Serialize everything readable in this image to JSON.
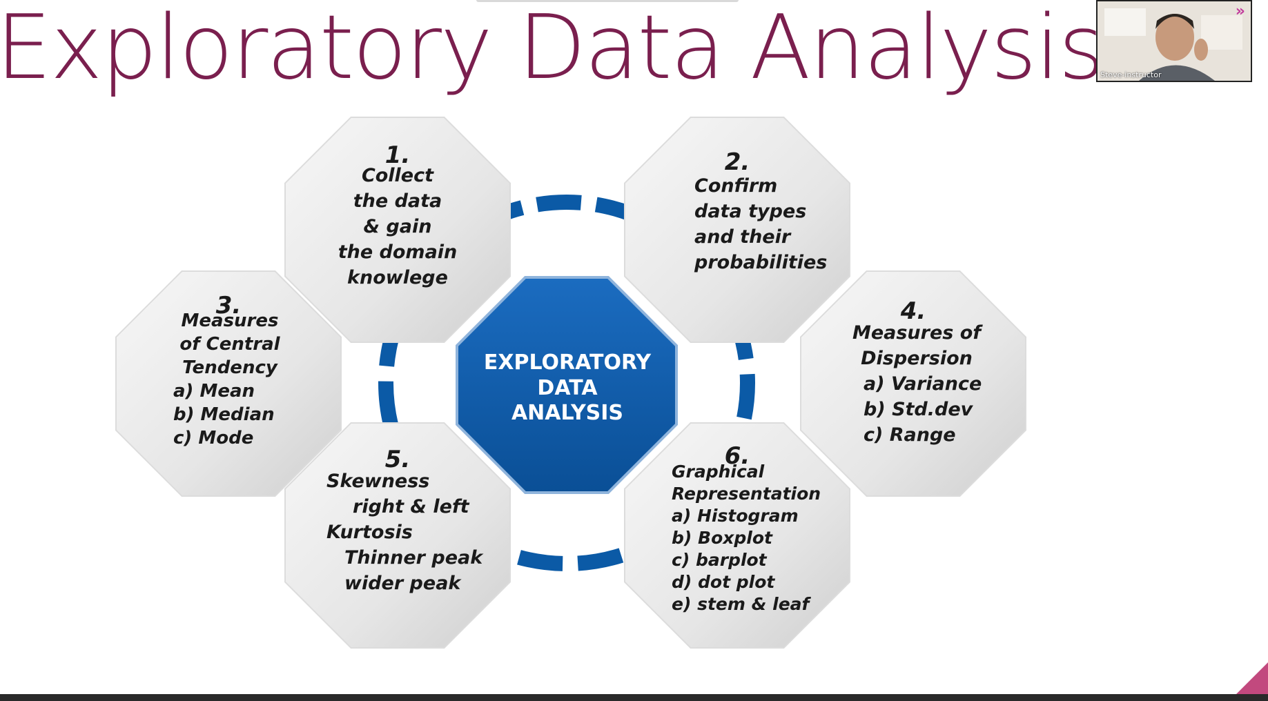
{
  "slide": {
    "title": "Exploratory Data Analysis"
  },
  "presenter": {
    "name": "Steve-instructor"
  },
  "center": {
    "lines": [
      "EXPLORATORY",
      "DATA",
      "ANALYSIS"
    ]
  },
  "steps": [
    {
      "number": "1.",
      "lines": [
        "Collect",
        "the data",
        "& gain",
        "the domain",
        "knowlege"
      ]
    },
    {
      "number": "2.",
      "lines": [
        "Confirm",
        "data types",
        "and their",
        "probabilities"
      ]
    },
    {
      "number": "3.",
      "lines": [
        "Measures",
        "of Central",
        "Tendency",
        "a) Mean",
        "b) Median",
        "c) Mode"
      ]
    },
    {
      "number": "4.",
      "lines": [
        "Measures of",
        "Dispersion",
        "a) Variance",
        "b) Std.dev",
        "c) Range"
      ]
    },
    {
      "number": "5.",
      "lines": [
        "Skewness",
        "right & left",
        "Kurtosis",
        "Thinner peak",
        "wider peak"
      ]
    },
    {
      "number": "6.",
      "lines": [
        "Graphical",
        "Representation",
        "a) Histogram",
        "b) Boxplot",
        "c) barplot",
        "d) dot plot",
        "e) stem & leaf"
      ]
    }
  ],
  "colors": {
    "title": "#7a1f4e",
    "center_fill": "#0b5aa6",
    "ring": "#0b5aa6",
    "octagon_fill": "#ececec"
  }
}
